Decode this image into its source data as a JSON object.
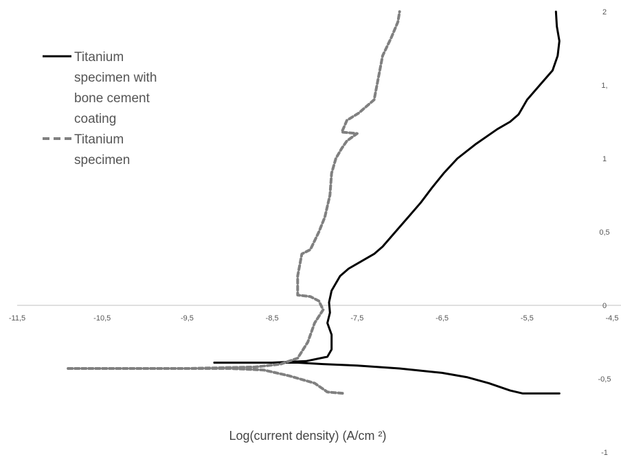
{
  "chart_data": {
    "type": "line",
    "title": "",
    "xlabel": "Log(current density) (A/cm ²)",
    "ylabel": "",
    "xlim": [
      -11.5,
      -4.5
    ],
    "ylim": [
      -1,
      2
    ],
    "x_ticks": [
      "-11,5",
      "-10,5",
      "-9,5",
      "-8,5",
      "-7,5",
      "-6,5",
      "-5,5",
      "-4,5"
    ],
    "y_ticks": [
      "2",
      "1,",
      "1",
      "0,5",
      "0",
      "-0,5",
      "-1"
    ],
    "grid": false,
    "legend_position": "top-left",
    "series": [
      {
        "name": "Titanium specimen with bone cement coating",
        "legend_lines": [
          "Titanium",
          "specimen  with",
          "bone cement",
          "coating"
        ],
        "style": "solid",
        "color": "#000000",
        "points": [
          [
            -9.18,
            -0.39
          ],
          [
            -8.6,
            -0.39
          ],
          [
            -8.2,
            -0.39
          ],
          [
            -7.9,
            -0.4
          ],
          [
            -7.5,
            -0.41
          ],
          [
            -7.0,
            -0.43
          ],
          [
            -6.5,
            -0.46
          ],
          [
            -6.2,
            -0.49
          ],
          [
            -5.95,
            -0.53
          ],
          [
            -5.7,
            -0.58
          ],
          [
            -5.55,
            -0.6
          ],
          [
            -5.12,
            -0.6
          ]
        ],
        "anodic_points": [
          [
            -9.18,
            -0.39
          ],
          [
            -8.5,
            -0.39
          ],
          [
            -8.1,
            -0.38
          ],
          [
            -7.85,
            -0.35
          ],
          [
            -7.8,
            -0.3
          ],
          [
            -7.8,
            -0.2
          ],
          [
            -7.85,
            -0.12
          ],
          [
            -7.82,
            -0.05
          ],
          [
            -7.83,
            0.02
          ],
          [
            -7.8,
            0.1
          ],
          [
            -7.75,
            0.15
          ],
          [
            -7.7,
            0.2
          ],
          [
            -7.6,
            0.25
          ],
          [
            -7.45,
            0.3
          ],
          [
            -7.3,
            0.35
          ],
          [
            -7.2,
            0.4
          ],
          [
            -7.05,
            0.5
          ],
          [
            -6.9,
            0.6
          ],
          [
            -6.75,
            0.7
          ],
          [
            -6.62,
            0.8
          ],
          [
            -6.48,
            0.9
          ],
          [
            -6.32,
            1.0
          ],
          [
            -6.1,
            1.1
          ],
          [
            -5.85,
            1.2
          ],
          [
            -5.7,
            1.25
          ],
          [
            -5.6,
            1.3
          ],
          [
            -5.5,
            1.4
          ],
          [
            -5.35,
            1.5
          ],
          [
            -5.2,
            1.6
          ],
          [
            -5.14,
            1.7
          ],
          [
            -5.12,
            1.8
          ],
          [
            -5.15,
            1.9
          ],
          [
            -5.16,
            2.0
          ]
        ]
      },
      {
        "name": "Titanium specimen",
        "legend_lines": [
          "Titanium",
          "specimen"
        ],
        "style": "dashed",
        "color": "#808080",
        "points": [
          [
            -10.9,
            -0.43
          ],
          [
            -10.3,
            -0.43
          ],
          [
            -9.6,
            -0.43
          ],
          [
            -9.0,
            -0.43
          ],
          [
            -8.6,
            -0.44
          ],
          [
            -8.3,
            -0.48
          ],
          [
            -8.0,
            -0.53
          ],
          [
            -7.85,
            -0.59
          ],
          [
            -7.65,
            -0.6
          ]
        ],
        "anodic_points": [
          [
            -10.9,
            -0.43
          ],
          [
            -9.5,
            -0.43
          ],
          [
            -8.7,
            -0.42
          ],
          [
            -8.4,
            -0.4
          ],
          [
            -8.2,
            -0.36
          ],
          [
            -8.08,
            -0.25
          ],
          [
            -8.0,
            -0.12
          ],
          [
            -7.9,
            -0.03
          ],
          [
            -7.95,
            0.03
          ],
          [
            -8.05,
            0.06
          ],
          [
            -8.2,
            0.07
          ],
          [
            -8.2,
            0.2
          ],
          [
            -8.15,
            0.35
          ],
          [
            -8.05,
            0.38
          ],
          [
            -7.95,
            0.5
          ],
          [
            -7.88,
            0.6
          ],
          [
            -7.82,
            0.75
          ],
          [
            -7.8,
            0.9
          ],
          [
            -7.75,
            1.0
          ],
          [
            -7.68,
            1.07
          ],
          [
            -7.62,
            1.12
          ],
          [
            -7.5,
            1.17
          ],
          [
            -7.68,
            1.18
          ],
          [
            -7.62,
            1.26
          ],
          [
            -7.48,
            1.31
          ],
          [
            -7.3,
            1.4
          ],
          [
            -7.25,
            1.55
          ],
          [
            -7.2,
            1.7
          ],
          [
            -7.1,
            1.82
          ],
          [
            -7.02,
            1.93
          ],
          [
            -7.0,
            2.0
          ]
        ]
      }
    ]
  }
}
